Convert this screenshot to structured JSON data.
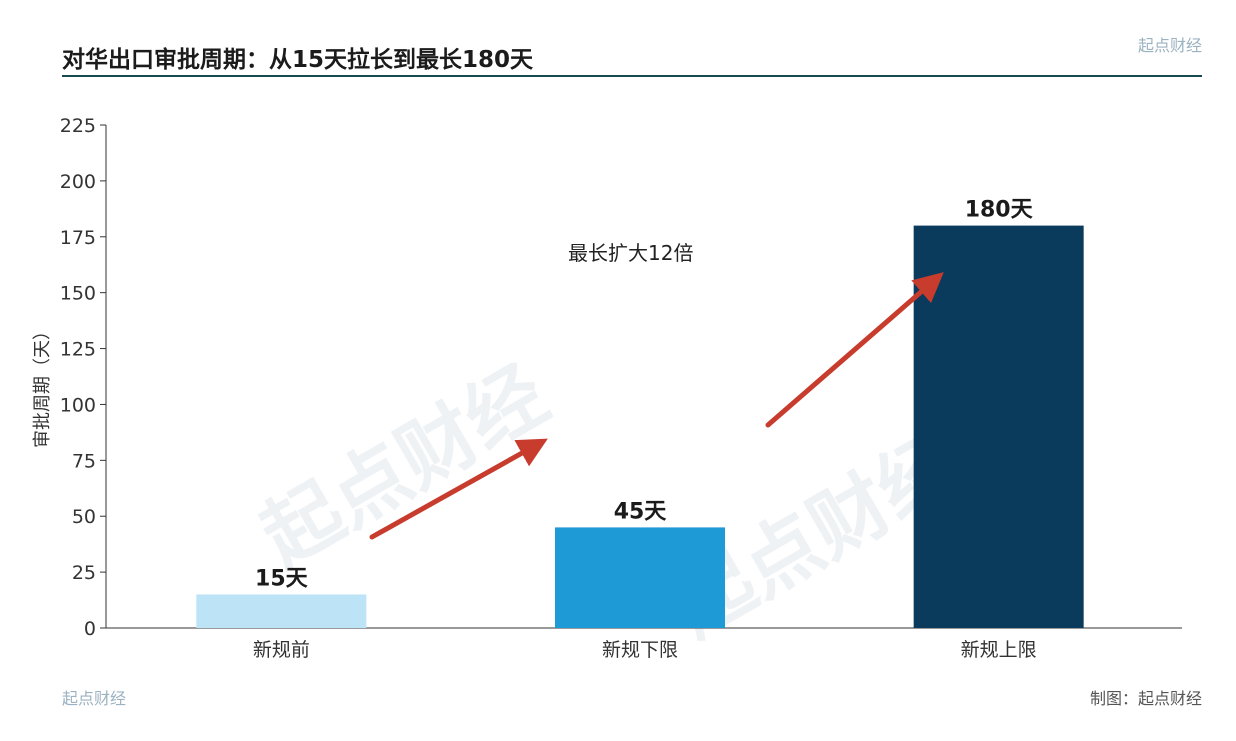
{
  "header": {
    "title": "对华出口审批周期：从15天拉长到最长180天",
    "brand": "起点财经"
  },
  "watermark": "起点财经",
  "annotation": "最长扩大12倍",
  "footer": {
    "brand": "起点财经",
    "credit": "制图：起点财经"
  },
  "colors": {
    "rule": "#174a4f",
    "arrow": "#c83c2d"
  },
  "chart_data": {
    "type": "bar",
    "categories": [
      "新规前",
      "新规下限",
      "新规上限"
    ],
    "values": [
      15,
      45,
      180
    ],
    "value_labels": [
      "15天",
      "45天",
      "180天"
    ],
    "bar_colors": [
      "#bde3f6",
      "#1e9ad6",
      "#0b3b5c"
    ],
    "title": "对华出口审批周期：从15天拉长到最长180天",
    "xlabel": "",
    "ylabel": "审批周期（天）",
    "ylim": [
      0,
      225
    ],
    "yticks": [
      0,
      25,
      50,
      75,
      100,
      125,
      150,
      175,
      200,
      225
    ],
    "grid": false,
    "legend": "none"
  }
}
